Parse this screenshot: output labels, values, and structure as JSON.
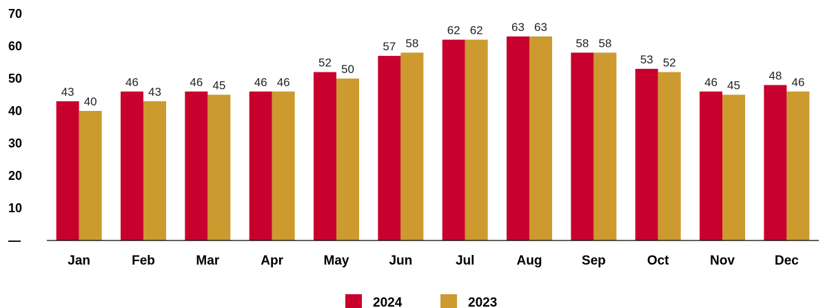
{
  "chart_data": {
    "type": "bar",
    "categories": [
      "Jan",
      "Feb",
      "Mar",
      "Apr",
      "May",
      "Jun",
      "Jul",
      "Aug",
      "Sep",
      "Oct",
      "Nov",
      "Dec"
    ],
    "series": [
      {
        "name": "2024",
        "color": "#c8002d",
        "values": [
          43,
          46,
          46,
          46,
          52,
          57,
          62,
          63,
          58,
          53,
          46,
          48
        ]
      },
      {
        "name": "2023",
        "color": "#cc9a2e",
        "values": [
          40,
          43,
          45,
          46,
          50,
          58,
          62,
          63,
          58,
          52,
          45,
          46
        ]
      }
    ],
    "yticks": [
      "—",
      "10",
      "20",
      "30",
      "40",
      "50",
      "60",
      "70"
    ],
    "ylim": [
      0,
      70
    ],
    "title": "",
    "xlabel": "",
    "ylabel": "",
    "grid": false,
    "data_labels": true,
    "legend": {
      "position": "bottom-center"
    }
  }
}
